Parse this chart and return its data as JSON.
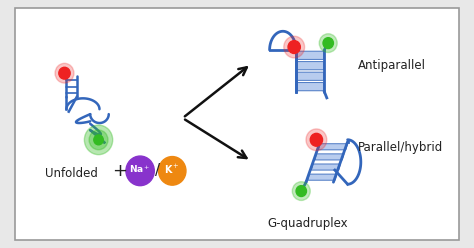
{
  "background_color": "#e8e8e8",
  "box_color": "#ffffff",
  "border_color": "#999999",
  "blue_color": "#3366bb",
  "blue_quad": "#3366bb",
  "ladder_fill": "#b8ccee",
  "red_color": "#ee2222",
  "green_color": "#33bb22",
  "na_color": "#8833cc",
  "k_color": "#ee8811",
  "text_color": "#222222",
  "label_unfolded": "Unfolded",
  "label_antiparallel": "Antiparallel",
  "label_parallel": "Parallel/hybrid",
  "label_gquad": "G-quadruplex",
  "arrow_color": "#111111"
}
